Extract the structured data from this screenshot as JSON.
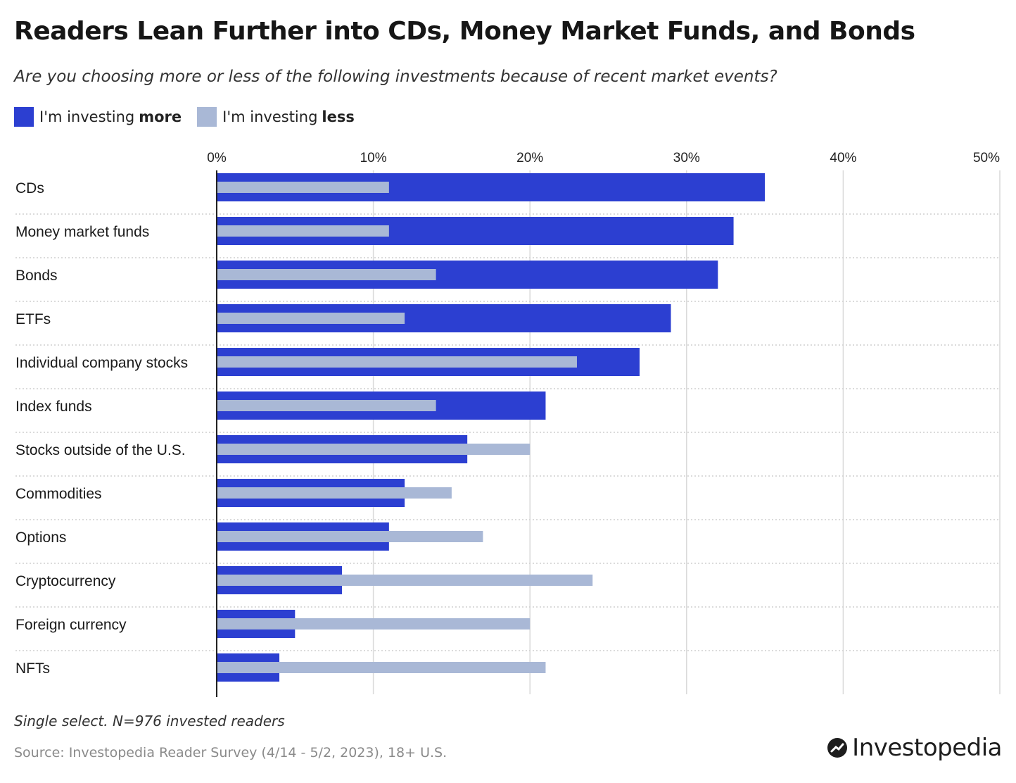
{
  "header": {
    "title": "Readers Lean Further into CDs, Money Market Funds, and Bonds",
    "subtitle": "Are you choosing more or less of the following investments because of recent market events?"
  },
  "legend": {
    "more_prefix": "I'm investing",
    "more_bold": "more",
    "less_prefix": "I'm investing",
    "less_bold": "less"
  },
  "colors": {
    "more": "#2c3fd1",
    "less": "#a9b8d6",
    "grid": "#d9d9d9",
    "axis": "#222222"
  },
  "chart_data": {
    "type": "bar",
    "orientation": "horizontal",
    "categories": [
      "CDs",
      "Money market funds",
      "Bonds",
      "ETFs",
      "Individual company stocks",
      "Index funds",
      "Stocks outside of the U.S.",
      "Commodities",
      "Options",
      "Cryptocurrency",
      "Foreign currency",
      "NFTs"
    ],
    "series": [
      {
        "name": "I'm investing more",
        "values": [
          35,
          33,
          32,
          29,
          27,
          21,
          16,
          12,
          11,
          8,
          5,
          4
        ]
      },
      {
        "name": "I'm investing less",
        "values": [
          11,
          11,
          14,
          12,
          23,
          14,
          20,
          15,
          17,
          24,
          20,
          21
        ]
      }
    ],
    "xlim": [
      0,
      50
    ],
    "xticks": [
      "0%",
      "10%",
      "20%",
      "30%",
      "40%",
      "50%"
    ],
    "xtick_values": [
      0,
      10,
      20,
      30,
      40,
      50
    ],
    "grid": true,
    "legend_position": "top-left"
  },
  "footer": {
    "note": "Single select. N=976 invested readers",
    "source": "Source: Investopedia Reader Survey (4/14 - 5/2, 2023), 18+ U.S.",
    "brand": "Investopedia"
  }
}
